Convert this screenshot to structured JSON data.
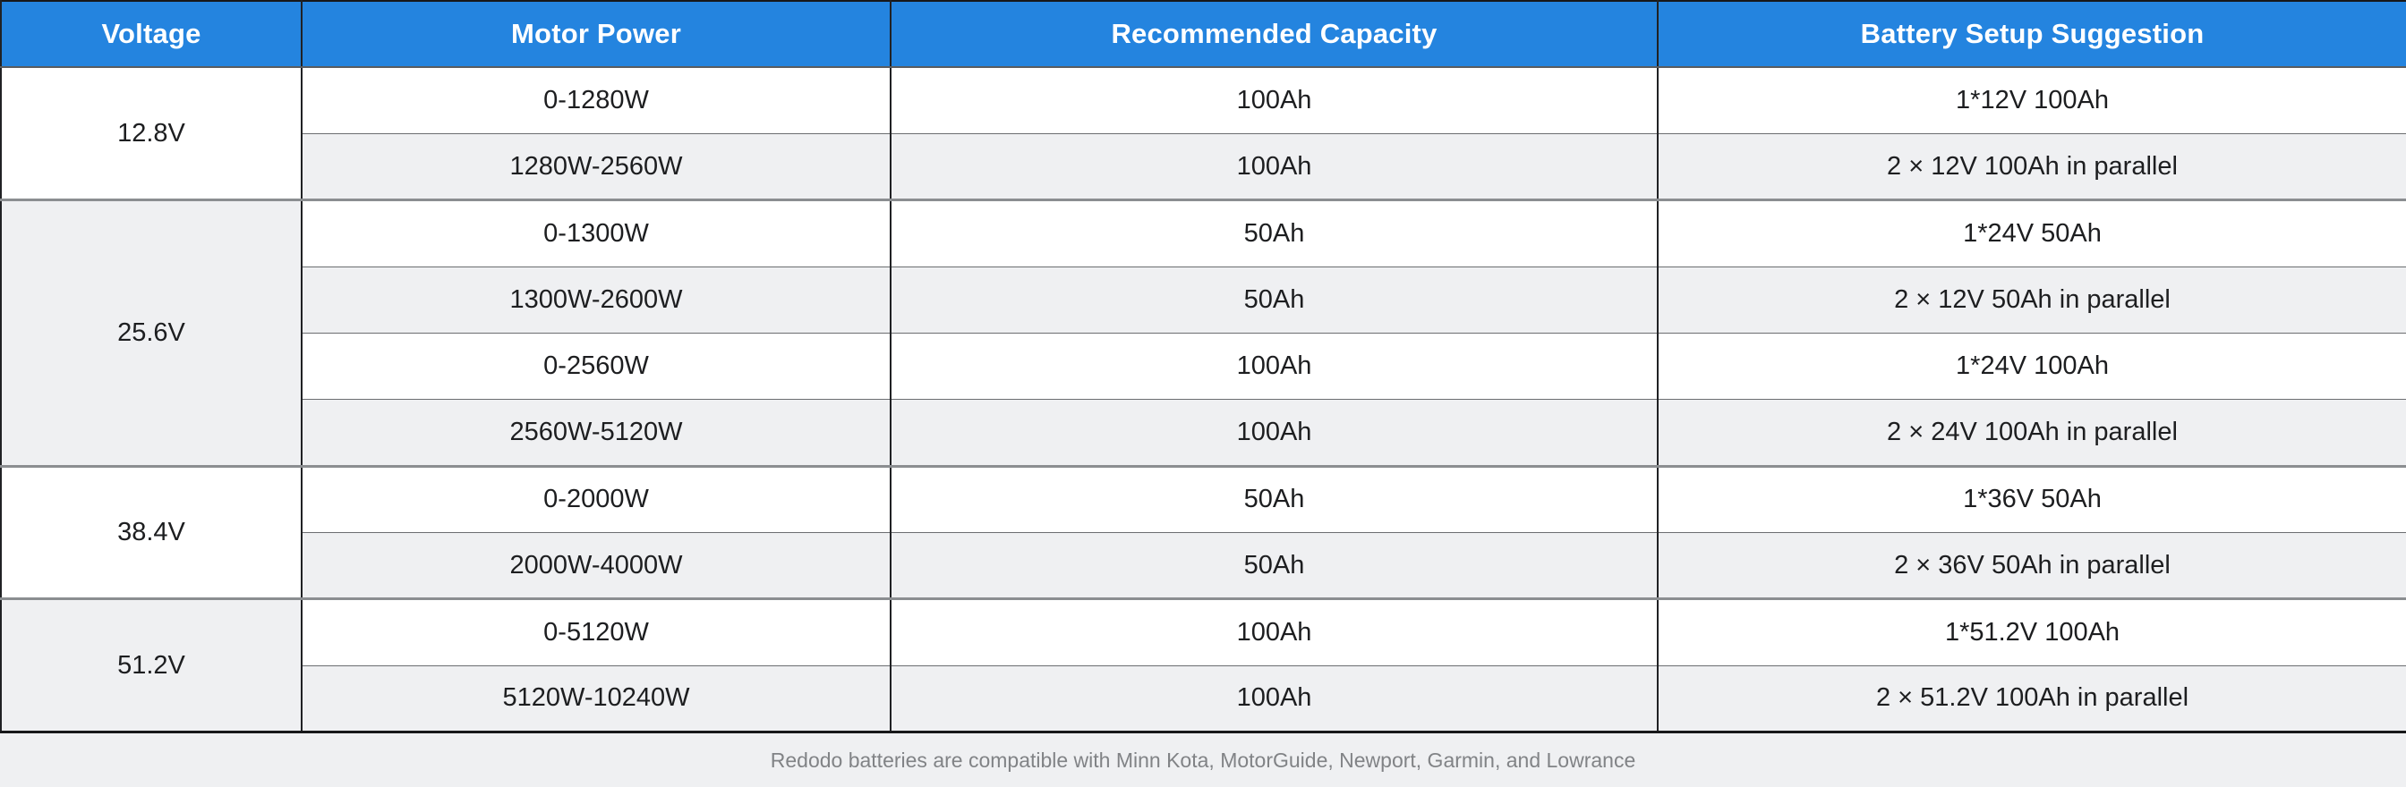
{
  "header": {
    "columns": [
      "Voltage",
      "Motor Power",
      "Recommended Capacity",
      "Battery Setup Suggestion"
    ]
  },
  "table": {
    "groups": [
      {
        "voltage": "12.8V",
        "rows": [
          {
            "power": "0-1280W",
            "capacity": "100Ah",
            "setup": "1*12V 100Ah"
          },
          {
            "power": "1280W-2560W",
            "capacity": "100Ah",
            "setup": "2 × 12V 100Ah in parallel"
          }
        ]
      },
      {
        "voltage": "25.6V",
        "rows": [
          {
            "power": "0-1300W",
            "capacity": "50Ah",
            "setup": "1*24V 50Ah"
          },
          {
            "power": "1300W-2600W",
            "capacity": "50Ah",
            "setup": "2 × 12V 50Ah in parallel"
          },
          {
            "power": "0-2560W",
            "capacity": "100Ah",
            "setup": "1*24V 100Ah"
          },
          {
            "power": "2560W-5120W",
            "capacity": "100Ah",
            "setup": "2 × 24V 100Ah in parallel"
          }
        ]
      },
      {
        "voltage": "38.4V",
        "rows": [
          {
            "power": "0-2000W",
            "capacity": "50Ah",
            "setup": "1*36V 50Ah"
          },
          {
            "power": "2000W-4000W",
            "capacity": "50Ah",
            "setup": "2 × 36V 50Ah in parallel"
          }
        ]
      },
      {
        "voltage": "51.2V",
        "rows": [
          {
            "power": "0-5120W",
            "capacity": "100Ah",
            "setup": "1*51.2V 100Ah"
          },
          {
            "power": "5120W-10240W",
            "capacity": "100Ah",
            "setup": "2 × 51.2V 100Ah in parallel"
          }
        ]
      }
    ]
  },
  "footer": {
    "note": "Redodo batteries are compatible with Minn Kota, MotorGuide, Newport, Garmin, and Lowrance"
  },
  "colors": {
    "header_bg": "#2484df",
    "header_text": "#ffffff",
    "row_bg": "#ffffff",
    "row_alt_bg": "#eff0f2",
    "body_text": "#1d1e20",
    "footer_bg": "#eff0f2",
    "footer_text": "#818386",
    "group_divider": "#8b8e91",
    "row_divider": "#6b6d70",
    "outer_border": "#17181a"
  },
  "chart_data": {
    "type": "table",
    "title": "",
    "columns": [
      "Voltage",
      "Motor Power",
      "Recommended Capacity",
      "Battery Setup Suggestion"
    ],
    "rows": [
      [
        "12.8V",
        "0-1280W",
        "100Ah",
        "1*12V 100Ah"
      ],
      [
        "12.8V",
        "1280W-2560W",
        "100Ah",
        "2 × 12V 100Ah in parallel"
      ],
      [
        "25.6V",
        "0-1300W",
        "50Ah",
        "1*24V 50Ah"
      ],
      [
        "25.6V",
        "1300W-2600W",
        "50Ah",
        "2 × 12V 50Ah in parallel"
      ],
      [
        "25.6V",
        "0-2560W",
        "100Ah",
        "1*24V 100Ah"
      ],
      [
        "25.6V",
        "2560W-5120W",
        "100Ah",
        "2 × 24V 100Ah in parallel"
      ],
      [
        "38.4V",
        "0-2000W",
        "50Ah",
        "1*36V 50Ah"
      ],
      [
        "38.4V",
        "2000W-4000W",
        "50Ah",
        "2 × 36V 50Ah in parallel"
      ],
      [
        "51.2V",
        "0-5120W",
        "100Ah",
        "1*51.2V 100Ah"
      ],
      [
        "51.2V",
        "5120W-10240W",
        "100Ah",
        "2 × 51.2V 100Ah in parallel"
      ]
    ],
    "note": "Redodo batteries are compatible with Minn Kota, MotorGuide, Newport, Garmin, and Lowrance",
    "legend_position": "none",
    "grid": true
  }
}
